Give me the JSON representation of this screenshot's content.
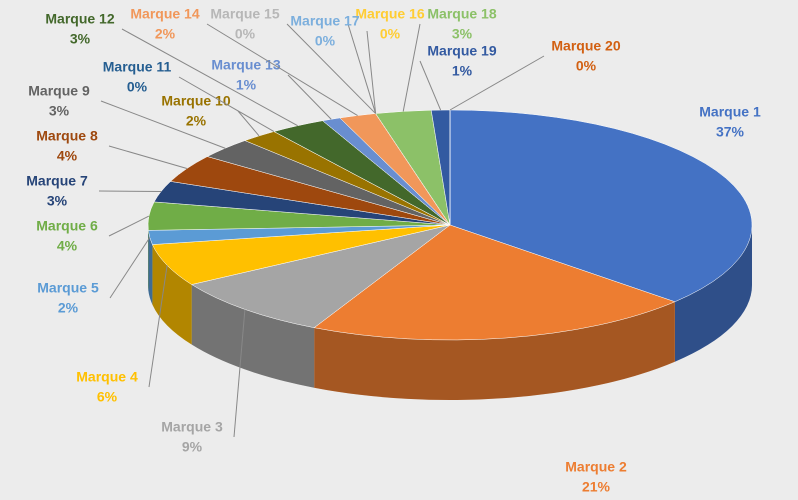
{
  "chart_data": {
    "type": "pie3d",
    "categories": [
      "Marque 1",
      "Marque 2",
      "Marque 3",
      "Marque 4",
      "Marque 5",
      "Marque 6",
      "Marque 7",
      "Marque 8",
      "Marque 9",
      "Marque 10",
      "Marque 11",
      "Marque 12",
      "Marque 13",
      "Marque 14",
      "Marque 15",
      "Marque 16",
      "Marque 17",
      "Marque 18",
      "Marque 19",
      "Marque 20"
    ],
    "values": [
      37,
      21,
      9,
      6,
      2,
      4,
      3,
      4,
      3,
      2,
      0,
      3,
      1,
      2,
      0,
      0,
      0,
      3,
      1,
      0
    ],
    "value_labels": [
      "37%",
      "21%",
      "9%",
      "6%",
      "2%",
      "4%",
      "3%",
      "4%",
      "3%",
      "2%",
      "0%",
      "3%",
      "1%",
      "2%",
      "0%",
      "0%",
      "0%",
      "3%",
      "1%",
      "0%"
    ],
    "colors": [
      "#4472c4",
      "#ed7d31",
      "#a5a5a5",
      "#ffc000",
      "#5b9bd5",
      "#70ad47",
      "#264478",
      "#9e480e",
      "#636363",
      "#997300",
      "#255e91",
      "#43682b",
      "#698ed0",
      "#f1975a",
      "#b7b7b7",
      "#ffcd33",
      "#7cafdd",
      "#8cc168",
      "#335aa1",
      "#d26012"
    ]
  }
}
